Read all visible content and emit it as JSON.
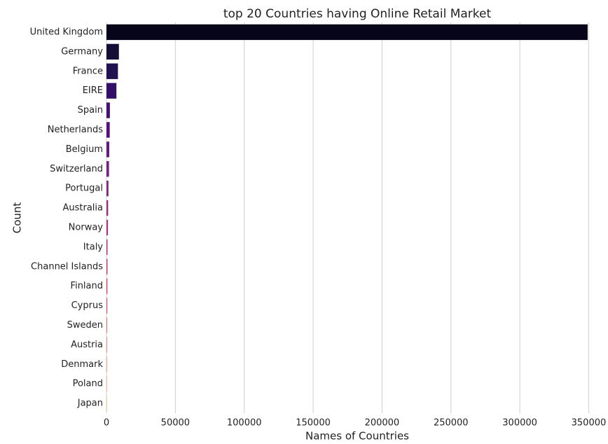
{
  "chart_data": {
    "type": "barh",
    "title": "top 20 Countries having Online Retail Market",
    "xlabel": "Names of Countries",
    "ylabel": "Count",
    "categories": [
      "United Kingdom",
      "Germany",
      "France",
      "EIRE",
      "Spain",
      "Netherlands",
      "Belgium",
      "Switzerland",
      "Portugal",
      "Australia",
      "Norway",
      "Italy",
      "Channel Islands",
      "Finland",
      "Cyprus",
      "Sweden",
      "Austria",
      "Denmark",
      "Poland",
      "Japan"
    ],
    "values": [
      349227,
      9027,
      8327,
      7228,
      2480,
      2363,
      2031,
      1842,
      1453,
      1184,
      1071,
      758,
      747,
      685,
      603,
      450,
      398,
      380,
      330,
      321
    ],
    "colors": [
      "#06051a",
      "#140e36",
      "#221150",
      "#331068",
      "#440f76",
      "#550f7d",
      "#641a80",
      "#752181",
      "#852781",
      "#962c80",
      "#a8327d",
      "#b73779",
      "#c83e73",
      "#d8456c",
      "#e65163",
      "#f1605d",
      "#f7725c",
      "#fb8761",
      "#fd9b6b",
      "#feb078"
    ],
    "xlim": [
      0,
      364000
    ],
    "xticks": [
      0,
      50000,
      100000,
      150000,
      200000,
      250000,
      300000,
      350000
    ],
    "grid": true
  }
}
